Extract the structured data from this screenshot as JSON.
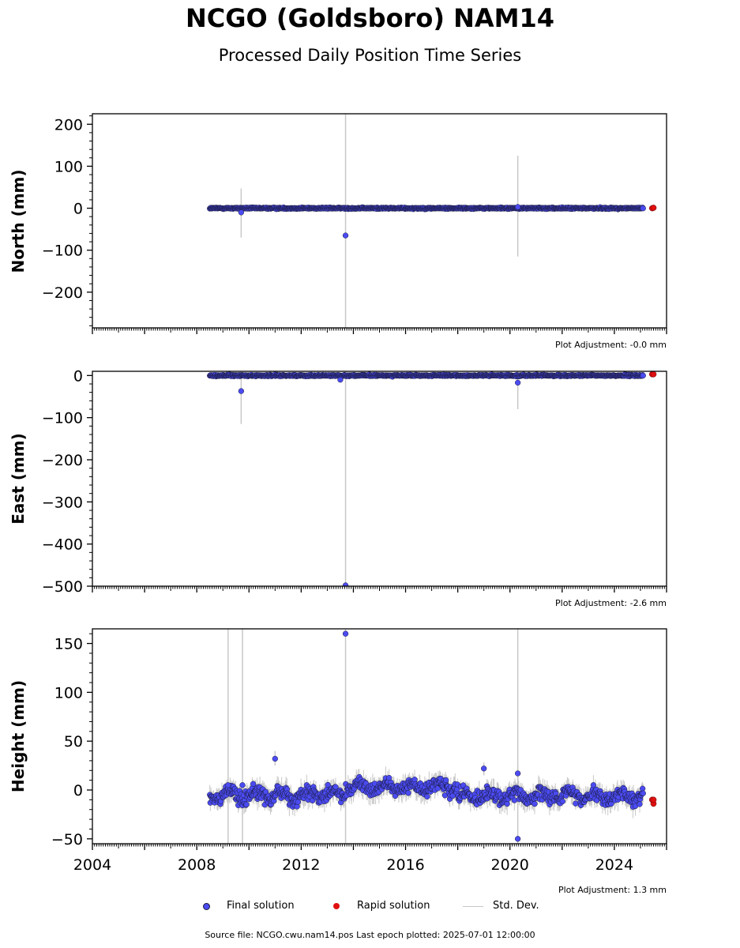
{
  "title": "NCGO (Goldsboro) NAM14",
  "subtitle": "Processed Daily Position Time Series",
  "source": "Source file: NCGO.cwu.nam14.pos  Last epoch plotted: 2025-07-01 12:00:00",
  "legend": {
    "final": "Final solution",
    "rapid": "Rapid solution",
    "std": "Std. Dev."
  },
  "colors": {
    "final": "#4b4bf2",
    "rapid": "#e01010",
    "std": "#c8c8c8",
    "marker_edge": "#1a1a3a"
  },
  "chart_data": [
    {
      "type": "scatter",
      "ylabel": "North (mm)",
      "ylim": [
        -285,
        225
      ],
      "yticks": [
        -200,
        -100,
        0,
        100,
        200
      ],
      "xlim": [
        2004.0,
        2026.0
      ],
      "adjustment": "Plot Adjustment: -0.0 mm",
      "final_range": [
        2008.5,
        2025.1
      ],
      "scatter_sd": 2,
      "outliers": [
        {
          "x": 2009.7,
          "y": -10,
          "err_low": -70,
          "err_high": 47
        },
        {
          "x": 2013.7,
          "y": -65,
          "err_low": -285,
          "err_high": 225
        },
        {
          "x": 2020.3,
          "y": 3,
          "err_low": -115,
          "err_high": 125
        }
      ],
      "rapid": [
        {
          "x": 2025.45,
          "y": 0
        },
        {
          "x": 2025.5,
          "y": 1
        }
      ]
    },
    {
      "type": "scatter",
      "ylabel": "East (mm)",
      "ylim": [
        -500,
        10
      ],
      "yticks": [
        -500,
        -400,
        -300,
        -200,
        -100,
        0
      ],
      "xlim": [
        2004.0,
        2026.0
      ],
      "adjustment": "Plot Adjustment: -2.6 mm",
      "final_range": [
        2008.5,
        2025.1
      ],
      "scatter_sd": 2,
      "outliers": [
        {
          "x": 2009.7,
          "y": -37,
          "err_low": -115,
          "err_high": 10
        },
        {
          "x": 2013.7,
          "y": -498,
          "err_low": -500,
          "err_high": 10
        },
        {
          "x": 2013.5,
          "y": -10,
          "err_low": -12,
          "err_high": -8
        },
        {
          "x": 2020.3,
          "y": -17,
          "err_low": -80,
          "err_high": 10
        }
      ],
      "rapid": [
        {
          "x": 2025.45,
          "y": 3
        },
        {
          "x": 2025.5,
          "y": 3
        }
      ]
    },
    {
      "type": "scatter",
      "ylabel": "Height (mm)",
      "ylim": [
        -55,
        165
      ],
      "yticks": [
        -50,
        0,
        50,
        100,
        150
      ],
      "xlim": [
        2004.0,
        2026.0
      ],
      "xticks": [
        "2004",
        "2008",
        "2012",
        "2016",
        "2020",
        "2024"
      ],
      "adjustment": "Plot Adjustment: 1.3 mm",
      "final_range": [
        2008.5,
        2025.1
      ],
      "scatter_sd": 8,
      "outliers": [
        {
          "x": 2009.2,
          "y": 5,
          "err_low": -55,
          "err_high": 165
        },
        {
          "x": 2009.75,
          "y": 5,
          "err_low": -55,
          "err_high": 165
        },
        {
          "x": 2011.0,
          "y": 32,
          "err_low": 25,
          "err_high": 40
        },
        {
          "x": 2013.7,
          "y": 160,
          "err_low": -55,
          "err_high": 165
        },
        {
          "x": 2019.0,
          "y": 22,
          "err_low": 15,
          "err_high": 28
        },
        {
          "x": 2020.3,
          "y": -50,
          "err_low": -55,
          "err_high": 165
        },
        {
          "x": 2020.3,
          "y": 17,
          "err_low": 10,
          "err_high": 24
        }
      ],
      "rapid": [
        {
          "x": 2025.45,
          "y": -10
        },
        {
          "x": 2025.5,
          "y": -14
        },
        {
          "x": 2025.5,
          "y": -10
        }
      ]
    }
  ]
}
